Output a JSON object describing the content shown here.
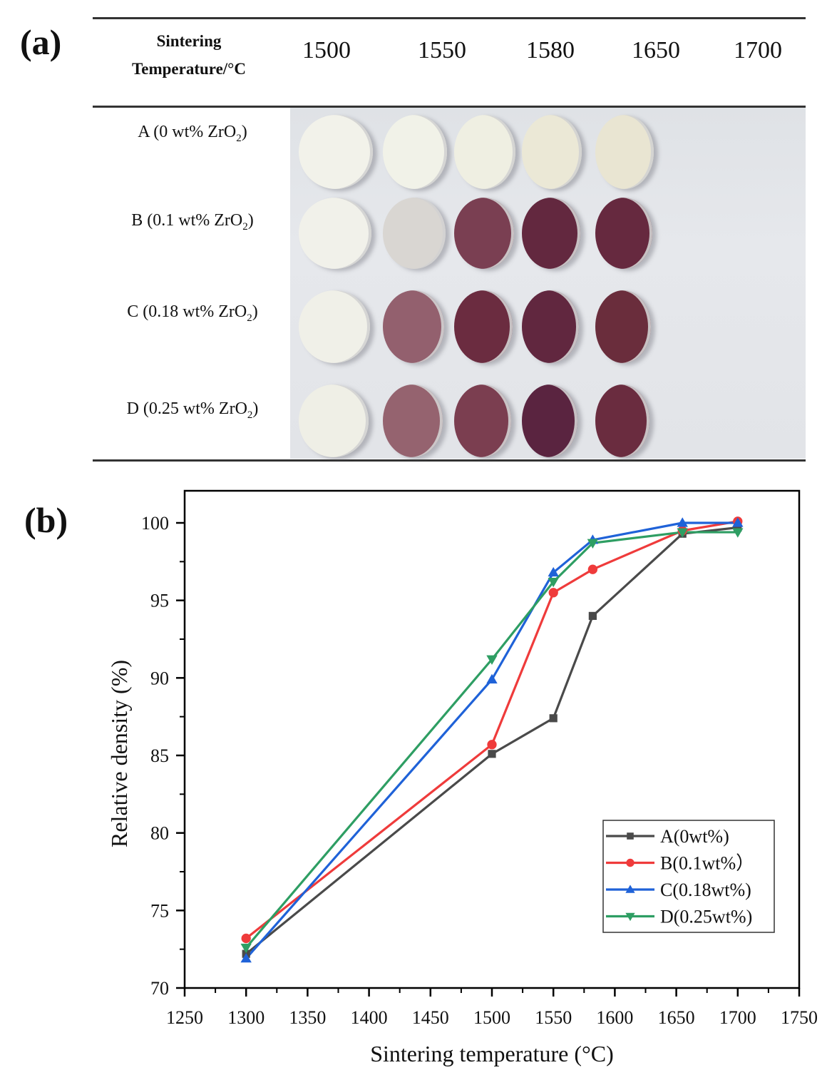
{
  "panel_a": {
    "label": "(a)",
    "header_title_line1": "Sintering",
    "header_title_line2": "Temperature/°C",
    "temperatures": [
      "1500",
      "1550",
      "1580",
      "1650",
      "1700"
    ],
    "rows": [
      {
        "prefix": "A (0 wt% ZrO",
        "sub": "2",
        "suffix": ")",
        "sample_colors": [
          "#f2f2ea",
          "#f1f2e8",
          "#efefe2",
          "#ebe8d6",
          "#e9e5d2"
        ]
      },
      {
        "prefix": "B (0.1 wt% ZrO",
        "sub": "2",
        "suffix": ")",
        "sample_colors": [
          "#f1f1ea",
          "#d9d6d2",
          "#7a3f52",
          "#63283f",
          "#66293f"
        ]
      },
      {
        "prefix": "C (0.18 wt% ZrO",
        "sub": "2",
        "suffix": ")",
        "sample_colors": [
          "#f0f0e8",
          "#93606e",
          "#6b2c40",
          "#61273f",
          "#6a2d3c"
        ]
      },
      {
        "prefix": "D (0.25 wt% ZrO",
        "sub": "2",
        "suffix": ")",
        "sample_colors": [
          "#efefe6",
          "#95636f",
          "#7b3e50",
          "#5a2440",
          "#6a2c3f"
        ]
      }
    ]
  },
  "panel_b": {
    "label": "(b)"
  },
  "chart_data": {
    "type": "line",
    "title": "",
    "xlabel": "Sintering temperature (°C)",
    "ylabel": "Relative density (%)",
    "xlim": [
      1250,
      1750
    ],
    "ylim": [
      70,
      102
    ],
    "xticks": [
      1250,
      1300,
      1350,
      1400,
      1450,
      1500,
      1550,
      1600,
      1650,
      1700,
      1750
    ],
    "yticks": [
      70,
      75,
      80,
      85,
      90,
      95,
      100
    ],
    "grid": false,
    "legend_position": "bottom-right",
    "series": [
      {
        "name": "A(0wt%)",
        "color": "#4a4a4a",
        "marker": "square",
        "x": [
          1300,
          1500,
          1550,
          1582,
          1655,
          1700
        ],
        "y": [
          72.2,
          85.1,
          87.4,
          94.0,
          99.3,
          99.7
        ]
      },
      {
        "name": "B(0.1wt%）",
        "color": "#ef3b3b",
        "marker": "circle",
        "x": [
          1300,
          1500,
          1550,
          1582,
          1655,
          1700
        ],
        "y": [
          73.2,
          85.7,
          95.5,
          97.0,
          99.5,
          100.1
        ]
      },
      {
        "name": "C(0.18wt%)",
        "color": "#1f62d8",
        "marker": "triangle-up",
        "x": [
          1300,
          1500,
          1550,
          1582,
          1655,
          1700
        ],
        "y": [
          71.9,
          89.9,
          96.8,
          98.9,
          100.0,
          100.0
        ]
      },
      {
        "name": "D(0.25wt%)",
        "color": "#2e9e63",
        "marker": "triangle-down",
        "x": [
          1300,
          1500,
          1550,
          1582,
          1655,
          1700
        ],
        "y": [
          72.6,
          91.2,
          96.2,
          98.7,
          99.4,
          99.4
        ]
      }
    ]
  }
}
